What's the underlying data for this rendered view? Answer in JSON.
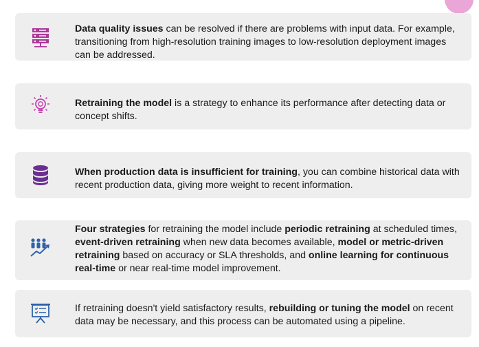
{
  "cards": [
    {
      "icon": "server-icon",
      "parts": [
        {
          "t": "Data quality issues",
          "b": true
        },
        {
          "t": " can be resolved if there are problems with input data. For example, transitioning from high-resolution training images to low-resolution deployment images can be addressed.",
          "b": false
        }
      ]
    },
    {
      "icon": "lightbulb-icon",
      "parts": [
        {
          "t": "Retraining the model",
          "b": true
        },
        {
          "t": " is a strategy to enhance its performance after detecting data or concept shifts.",
          "b": false
        }
      ]
    },
    {
      "icon": "database-icon",
      "parts": [
        {
          "t": "When production data is insufficient for training",
          "b": true
        },
        {
          "t": ", you can combine historical data with recent production data, giving more weight to recent information.",
          "b": false
        }
      ]
    },
    {
      "icon": "team-growth-icon",
      "parts": [
        {
          "t": "Four strategies",
          "b": true
        },
        {
          "t": " for retraining the model include ",
          "b": false
        },
        {
          "t": "periodic retraining",
          "b": true
        },
        {
          "t": " at scheduled times, ",
          "b": false
        },
        {
          "t": "event-driven retraining",
          "b": true
        },
        {
          "t": " when new data becomes available, ",
          "b": false
        },
        {
          "t": "model or metric-driven retraining",
          "b": true
        },
        {
          "t": " based on accuracy or SLA thresholds, and ",
          "b": false
        },
        {
          "t": "online learning for continuous real-time",
          "b": true
        },
        {
          "t": " or near real-time model improvement.",
          "b": false
        }
      ]
    },
    {
      "icon": "presentation-board-icon",
      "parts": [
        {
          "t": "If retraining doesn't yield satisfactory results, ",
          "b": false
        },
        {
          "t": "rebuilding or tuning the model",
          "b": true
        },
        {
          "t": " on recent data may be necessary, and this process can be automated using a pipeline.",
          "b": false
        }
      ]
    }
  ],
  "colors": {
    "card_bg": "#eeeeee",
    "icon_purple": "#7b3fa3",
    "icon_pink": "#c640b0",
    "icon_blue": "#2f63a8",
    "corner_blob": "#e9a6d6"
  }
}
